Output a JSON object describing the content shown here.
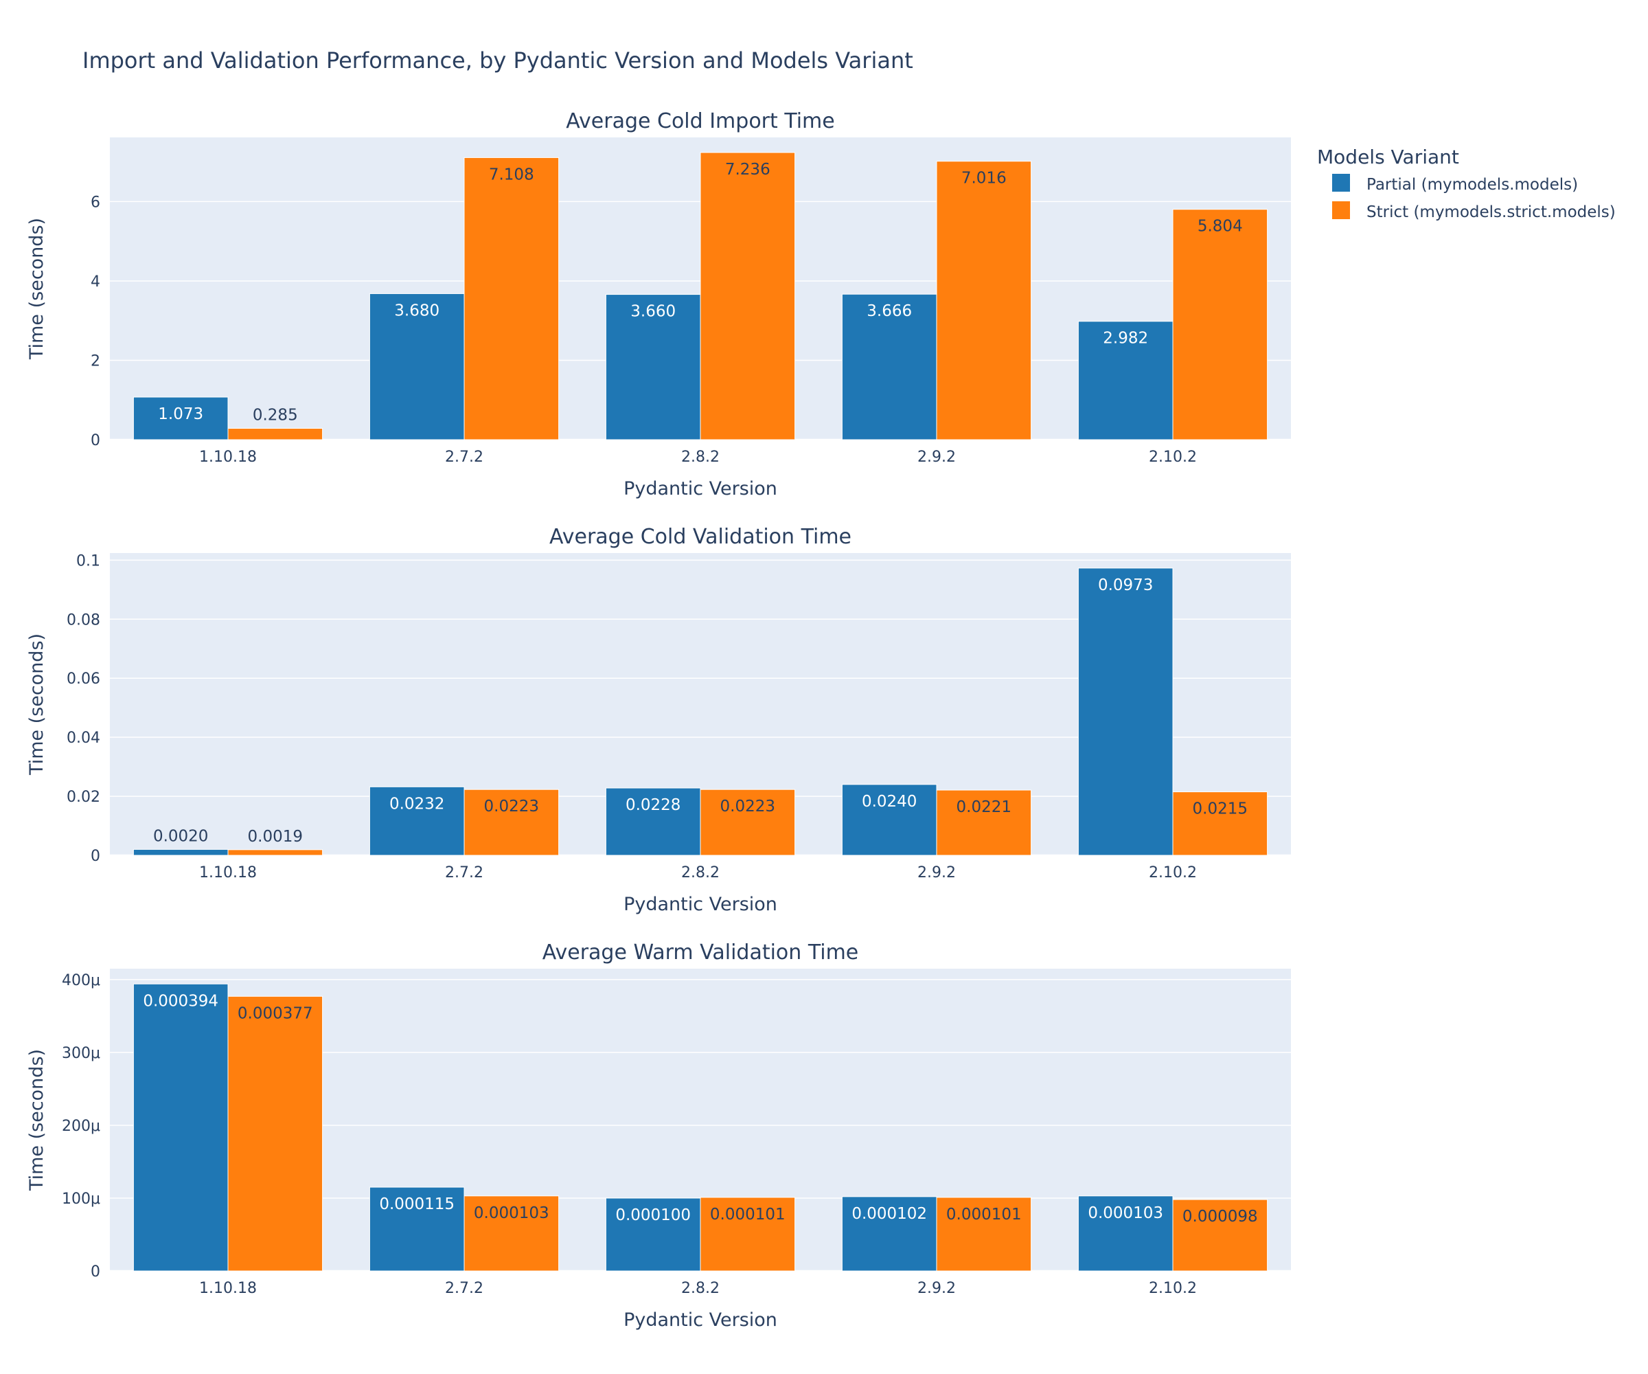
{
  "title": "Import and Validation Performance, by Pydantic Version and Models Variant",
  "legend": {
    "title": "Models Variant",
    "placement": "top-right",
    "items": [
      {
        "label": "Partial (mymodels.models)",
        "color": "#1f77b4"
      },
      {
        "label": "Strict (mymodels.strict.models)",
        "color": "#ff7f0e"
      }
    ]
  },
  "colors": {
    "plot_background": "#e5ecf6",
    "text": "#2a3f5f",
    "gridline": "#ffffff",
    "partial": "#1f77b4",
    "strict": "#ff7f0e"
  },
  "chart_data": [
    {
      "type": "bar",
      "title": "Average Cold Import Time",
      "xlabel": "Pydantic Version",
      "ylabel": "Time (seconds)",
      "categories": [
        "1.10.18",
        "2.7.2",
        "2.8.2",
        "2.9.2",
        "2.10.2"
      ],
      "ylim": [
        0,
        7.617
      ],
      "yticks": [
        0,
        2,
        4,
        6
      ],
      "ytick_labels": [
        "0",
        "2",
        "4",
        "6"
      ],
      "grid": true,
      "series": [
        {
          "name": "Partial (mymodels.models)",
          "values": [
            1.073,
            3.68,
            3.66,
            3.666,
            2.982
          ],
          "labels": [
            "1.073",
            "3.680",
            "3.660",
            "3.666",
            "2.982"
          ]
        },
        {
          "name": "Strict (mymodels.strict.models)",
          "values": [
            0.285,
            7.108,
            7.236,
            7.016,
            5.804
          ],
          "labels": [
            "0.285",
            "7.108",
            "7.236",
            "7.016",
            "5.804"
          ]
        }
      ]
    },
    {
      "type": "bar",
      "title": "Average Cold Validation Time",
      "xlabel": "Pydantic Version",
      "ylabel": "Time (seconds)",
      "categories": [
        "1.10.18",
        "2.7.2",
        "2.8.2",
        "2.9.2",
        "2.10.2"
      ],
      "ylim": [
        0,
        0.1024
      ],
      "yticks": [
        0,
        0.02,
        0.04,
        0.06,
        0.08,
        0.1
      ],
      "ytick_labels": [
        "0",
        "0.02",
        "0.04",
        "0.06",
        "0.08",
        "0.1"
      ],
      "grid": true,
      "series": [
        {
          "name": "Partial (mymodels.models)",
          "values": [
            0.002,
            0.0232,
            0.0228,
            0.024,
            0.0973
          ],
          "labels": [
            "0.0020",
            "0.0232",
            "0.0228",
            "0.0240",
            "0.0973"
          ]
        },
        {
          "name": "Strict (mymodels.strict.models)",
          "values": [
            0.0019,
            0.0223,
            0.0223,
            0.0221,
            0.0215
          ],
          "labels": [
            "0.0019",
            "0.0223",
            "0.0223",
            "0.0221",
            "0.0215"
          ]
        }
      ]
    },
    {
      "type": "bar",
      "title": "Average Warm Validation Time",
      "xlabel": "Pydantic Version",
      "ylabel": "Time (seconds)",
      "categories": [
        "1.10.18",
        "2.7.2",
        "2.8.2",
        "2.9.2",
        "2.10.2"
      ],
      "ylim": [
        0,
        0.000415
      ],
      "yticks": [
        0,
        0.0001,
        0.0002,
        0.0003,
        0.0004
      ],
      "ytick_labels": [
        "0",
        "100μ",
        "200μ",
        "300μ",
        "400μ"
      ],
      "grid": true,
      "series": [
        {
          "name": "Partial (mymodels.models)",
          "values": [
            0.000394,
            0.000115,
            0.0001,
            0.000102,
            0.000103
          ],
          "labels": [
            "0.000394",
            "0.000115",
            "0.000100",
            "0.000102",
            "0.000103"
          ]
        },
        {
          "name": "Strict (mymodels.strict.models)",
          "values": [
            0.000377,
            0.000103,
            0.000101,
            0.000101,
            9.8e-05
          ],
          "labels": [
            "0.000377",
            "0.000103",
            "0.000101",
            "0.000101",
            "0.000098"
          ]
        }
      ]
    }
  ]
}
